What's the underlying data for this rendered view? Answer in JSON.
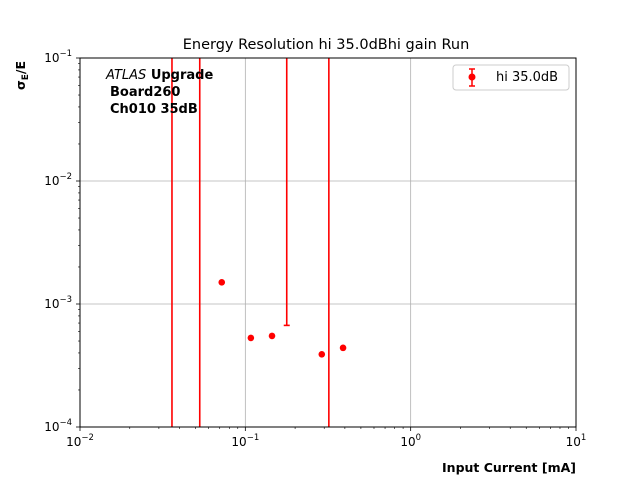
{
  "chart_data": {
    "type": "scatter",
    "title": "Energy Resolution hi 35.0dBhi gain Run",
    "xlabel": "Input Current [mA]",
    "ylabel_main": "σ",
    "ylabel_sub": "E",
    "ylabel_tail": "/E",
    "xscale": "log",
    "yscale": "log",
    "xlim": [
      0.01,
      10
    ],
    "ylim": [
      0.0001,
      0.1
    ],
    "grid": true,
    "x_ticks": [
      {
        "value": 0.01,
        "base": "10",
        "exp": "−2"
      },
      {
        "value": 0.1,
        "base": "10",
        "exp": "−1"
      },
      {
        "value": 1,
        "base": "10",
        "exp": "0"
      },
      {
        "value": 10,
        "base": "10",
        "exp": "1"
      }
    ],
    "y_ticks": [
      {
        "value": 0.0001,
        "base": "10",
        "exp": "−4"
      },
      {
        "value": 0.001,
        "base": "10",
        "exp": "−3"
      },
      {
        "value": 0.01,
        "base": "10",
        "exp": "−2"
      },
      {
        "value": 0.1,
        "base": "10",
        "exp": "−1"
      }
    ],
    "annotation": {
      "italic": "ATLAS",
      "bold": "Upgrade",
      "line2": "Board260",
      "line3": "Ch010 35dB"
    },
    "legend_placement": "top-right",
    "series": [
      {
        "name": "hi 35.0dB",
        "color": "#ff0000",
        "points": [
          {
            "x": 0.036,
            "y": null,
            "yerr_low": 0.0001,
            "yerr_high": 0.1
          },
          {
            "x": 0.053,
            "y": null,
            "yerr_low": 0.0001,
            "yerr_high": 0.1
          },
          {
            "x": 0.072,
            "y": 0.0015,
            "yerr_low": null,
            "yerr_high": null
          },
          {
            "x": 0.108,
            "y": 0.00053,
            "yerr_low": null,
            "yerr_high": null
          },
          {
            "x": 0.145,
            "y": 0.00055,
            "yerr_low": null,
            "yerr_high": null
          },
          {
            "x": 0.178,
            "y": null,
            "yerr_low": 0.00067,
            "yerr_high": 0.1
          },
          {
            "x": 0.29,
            "y": 0.00039,
            "yerr_low": null,
            "yerr_high": null
          },
          {
            "x": 0.32,
            "y": null,
            "yerr_low": 0.0001,
            "yerr_high": 0.1
          },
          {
            "x": 0.39,
            "y": 0.00044,
            "yerr_low": null,
            "yerr_high": null
          }
        ]
      }
    ]
  }
}
